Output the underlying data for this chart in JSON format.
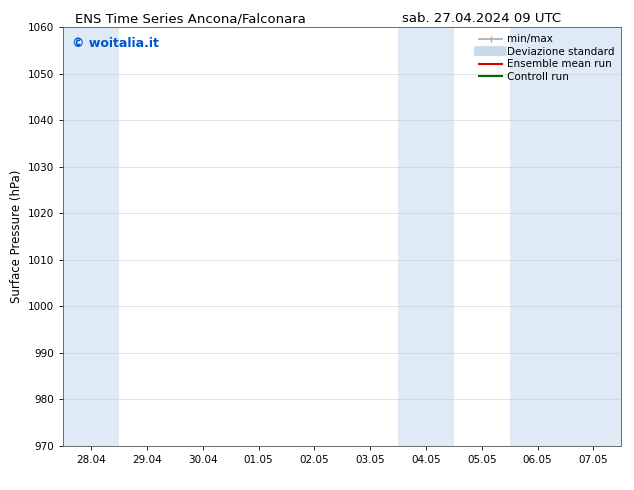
{
  "title_left": "ENS Time Series Ancona/Falconara",
  "title_right": "sab. 27.04.2024 09 UTC",
  "ylabel": "Surface Pressure (hPa)",
  "ylim": [
    970,
    1060
  ],
  "yticks": [
    970,
    980,
    990,
    1000,
    1010,
    1020,
    1030,
    1040,
    1050,
    1060
  ],
  "xtick_labels": [
    "28.04",
    "29.04",
    "30.04",
    "01.05",
    "02.05",
    "03.05",
    "04.05",
    "05.05",
    "06.05",
    "07.05"
  ],
  "watermark": "© woitalia.it",
  "watermark_color": "#0055cc",
  "band_color": "#deeaf5",
  "legend_items": [
    {
      "label": "min/max",
      "color": "#aaaaaa",
      "lw": 1.2
    },
    {
      "label": "Deviazione standard",
      "color": "#c8d8e8",
      "lw": 7
    },
    {
      "label": "Ensemble mean run",
      "color": "#dd0000",
      "lw": 1.5
    },
    {
      "label": "Controll run",
      "color": "#006600",
      "lw": 1.5
    }
  ],
  "shaded_bands": [
    {
      "xstart": -0.5,
      "xend": 0.5
    },
    {
      "xstart": 5.5,
      "xend": 6.5
    },
    {
      "xstart": 7.5,
      "xend": 9.5
    }
  ],
  "bg_color": "#ffffff",
  "title_fontsize": 9.5,
  "tick_fontsize": 7.5,
  "ylabel_fontsize": 8.5,
  "watermark_fontsize": 9,
  "legend_fontsize": 7.5
}
